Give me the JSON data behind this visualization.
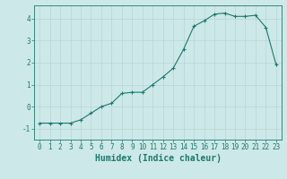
{
  "x": [
    0,
    1,
    2,
    3,
    4,
    5,
    6,
    7,
    8,
    9,
    10,
    11,
    12,
    13,
    14,
    15,
    16,
    17,
    18,
    19,
    20,
    21,
    22,
    23
  ],
  "y": [
    -0.75,
    -0.75,
    -0.75,
    -0.75,
    -0.6,
    -0.3,
    0.0,
    0.15,
    0.6,
    0.65,
    0.65,
    1.0,
    1.35,
    1.75,
    2.6,
    3.65,
    3.9,
    4.2,
    4.25,
    4.1,
    4.1,
    4.15,
    3.6,
    1.9
  ],
  "line_color": "#1a7a6e",
  "marker": "+",
  "marker_size": 3,
  "xlabel": "Humidex (Indice chaleur)",
  "ylabel": "",
  "xlim": [
    -0.5,
    23.5
  ],
  "ylim": [
    -1.5,
    4.6
  ],
  "yticks": [
    -1,
    0,
    1,
    2,
    3,
    4
  ],
  "xticks": [
    0,
    1,
    2,
    3,
    4,
    5,
    6,
    7,
    8,
    9,
    10,
    11,
    12,
    13,
    14,
    15,
    16,
    17,
    18,
    19,
    20,
    21,
    22,
    23
  ],
  "bg_color": "#cce8e8",
  "grid_color": "#b8d4d4",
  "tick_fontsize": 5.5,
  "label_fontsize": 7
}
